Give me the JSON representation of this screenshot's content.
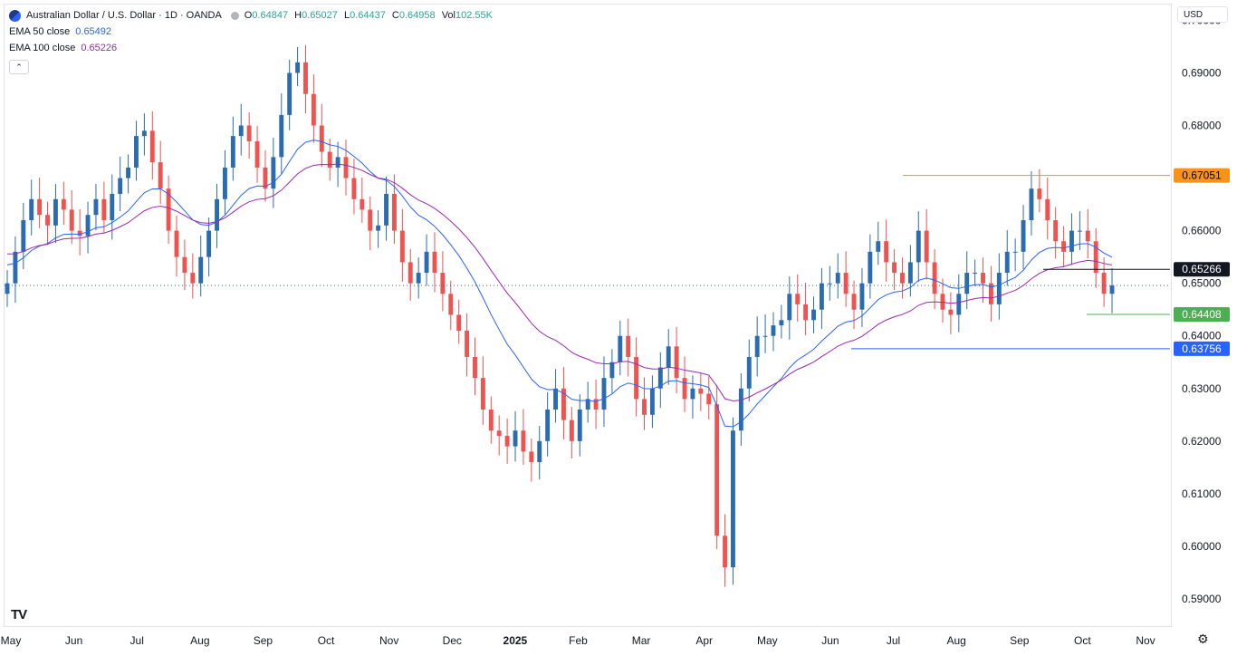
{
  "header": {
    "symbol": "Australian Dollar / U.S. Dollar · 1D · OANDA",
    "o_label": "O",
    "o": "0.64847",
    "h_label": "H",
    "h": "0.65027",
    "l_label": "L",
    "l": "0.64437",
    "c_label": "C",
    "c": "0.64958",
    "vol_label": "Vol",
    "vol": "102.55K"
  },
  "indicators": {
    "ema50_label": "EMA 50 close",
    "ema50_value": "0.65492",
    "ema50_color": "#2962ff",
    "ema100_label": "EMA 100 close",
    "ema100_value": "0.65226",
    "ema100_color": "#9c27b0"
  },
  "currency": "USD",
  "logo": "TV",
  "colors": {
    "up": "#26a69a",
    "up_bar": "#2b6cb0",
    "down": "#ef5350"
  },
  "chart_data": {
    "type": "candlestick",
    "symbol": "AUDUSD",
    "timeframe": "1D",
    "ylim": [
      0.585,
      0.703
    ],
    "y_ticks": [
      "0.70000",
      "0.69000",
      "0.68000",
      "0.67000",
      "0.66000",
      "0.65000",
      "0.64000",
      "0.63000",
      "0.62000",
      "0.61000",
      "0.60000",
      "0.59000"
    ],
    "x_ticks": [
      "May",
      "Jun",
      "Jul",
      "Aug",
      "Sep",
      "Oct",
      "Nov",
      "Dec",
      "2025",
      "Feb",
      "Mar",
      "Apr",
      "May",
      "Jun",
      "Jul",
      "Aug",
      "Sep",
      "Oct",
      "Nov"
    ],
    "close_series": [
      0.65,
      0.656,
      0.662,
      0.666,
      0.663,
      0.661,
      0.666,
      0.664,
      0.66,
      0.659,
      0.663,
      0.666,
      0.662,
      0.667,
      0.67,
      0.672,
      0.678,
      0.679,
      0.673,
      0.668,
      0.66,
      0.655,
      0.652,
      0.65,
      0.655,
      0.66,
      0.666,
      0.672,
      0.678,
      0.68,
      0.677,
      0.672,
      0.668,
      0.674,
      0.682,
      0.69,
      0.692,
      0.686,
      0.68,
      0.675,
      0.672,
      0.674,
      0.67,
      0.666,
      0.664,
      0.66,
      0.661,
      0.667,
      0.66,
      0.654,
      0.65,
      0.652,
      0.656,
      0.652,
      0.648,
      0.644,
      0.641,
      0.636,
      0.632,
      0.626,
      0.622,
      0.621,
      0.619,
      0.622,
      0.618,
      0.616,
      0.62,
      0.626,
      0.63,
      0.624,
      0.62,
      0.626,
      0.628,
      0.626,
      0.632,
      0.635,
      0.64,
      0.636,
      0.628,
      0.625,
      0.63,
      0.634,
      0.638,
      0.632,
      0.628,
      0.63,
      0.629,
      0.627,
      0.602,
      0.596,
      0.622,
      0.63,
      0.636,
      0.64,
      0.64,
      0.642,
      0.643,
      0.648,
      0.646,
      0.643,
      0.645,
      0.65,
      0.65,
      0.652,
      0.648,
      0.645,
      0.65,
      0.656,
      0.658,
      0.654,
      0.652,
      0.65,
      0.654,
      0.66,
      0.654,
      0.648,
      0.645,
      0.644,
      0.648,
      0.652,
      0.652,
      0.65,
      0.646,
      0.652,
      0.656,
      0.656,
      0.662,
      0.668,
      0.666,
      0.662,
      0.658,
      0.656,
      0.66,
      0.66,
      0.658,
      0.652,
      0.648,
      0.6496
    ],
    "series": [
      {
        "name": "EMA 50 close",
        "last": 0.65492
      },
      {
        "name": "EMA 100 close",
        "last": 0.65226
      }
    ],
    "levels": [
      {
        "value": 0.67051,
        "label": "0.67051",
        "color": "#f7931a",
        "text_color": "#000000"
      },
      {
        "value": 0.65266,
        "label": "0.65266",
        "color": "#131722",
        "text_color": "#ffffff"
      },
      {
        "value": 0.64408,
        "label": "0.64408",
        "color": "#4caf50",
        "text_color": "#ffffff"
      },
      {
        "value": 0.63756,
        "label": "0.63756",
        "color": "#2962ff",
        "text_color": "#ffffff"
      }
    ],
    "last_price": 0.64958
  }
}
